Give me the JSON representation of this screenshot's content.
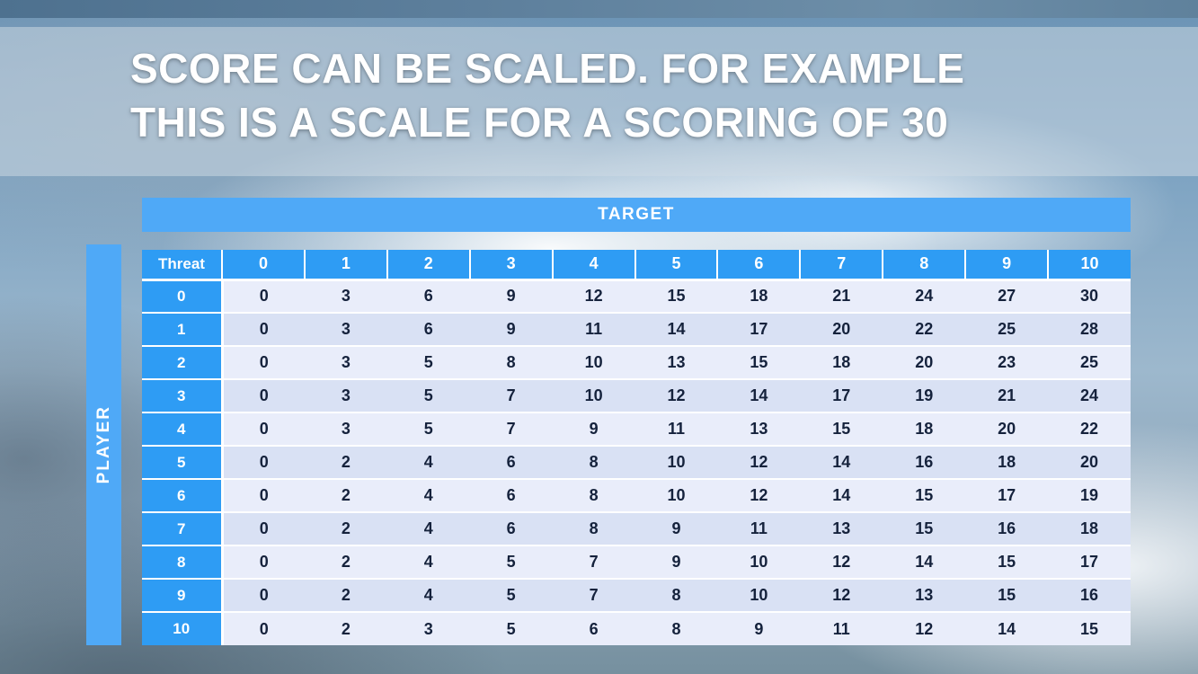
{
  "slide": {
    "title_line1": "SCORE CAN BE SCALED. FOR EXAMPLE",
    "title_line2": "THIS IS A SCALE FOR A SCORING OF 30"
  },
  "table": {
    "target_label": "TARGET",
    "player_label": "PLAYER",
    "corner_label": "Threat",
    "column_headers": [
      "0",
      "1",
      "2",
      "3",
      "4",
      "5",
      "6",
      "7",
      "8",
      "9",
      "10"
    ],
    "rows": [
      {
        "header": "0",
        "values": [
          0,
          3,
          6,
          9,
          12,
          15,
          18,
          21,
          24,
          27,
          30
        ]
      },
      {
        "header": "1",
        "values": [
          0,
          3,
          6,
          9,
          11,
          14,
          17,
          20,
          22,
          25,
          28
        ]
      },
      {
        "header": "2",
        "values": [
          0,
          3,
          5,
          8,
          10,
          13,
          15,
          18,
          20,
          23,
          25
        ]
      },
      {
        "header": "3",
        "values": [
          0,
          3,
          5,
          7,
          10,
          12,
          14,
          17,
          19,
          21,
          24
        ]
      },
      {
        "header": "4",
        "values": [
          0,
          3,
          5,
          7,
          9,
          11,
          13,
          15,
          18,
          20,
          22
        ]
      },
      {
        "header": "5",
        "values": [
          0,
          2,
          4,
          6,
          8,
          10,
          12,
          14,
          16,
          18,
          20
        ]
      },
      {
        "header": "6",
        "values": [
          0,
          2,
          4,
          6,
          8,
          10,
          12,
          14,
          15,
          17,
          19
        ]
      },
      {
        "header": "7",
        "values": [
          0,
          2,
          4,
          6,
          8,
          9,
          11,
          13,
          15,
          16,
          18
        ]
      },
      {
        "header": "8",
        "values": [
          0,
          2,
          4,
          5,
          7,
          9,
          10,
          12,
          14,
          15,
          17
        ]
      },
      {
        "header": "9",
        "values": [
          0,
          2,
          4,
          5,
          7,
          8,
          10,
          12,
          13,
          15,
          16
        ]
      },
      {
        "header": "10",
        "values": [
          0,
          2,
          3,
          5,
          6,
          8,
          9,
          11,
          12,
          14,
          15
        ]
      }
    ]
  },
  "colors": {
    "header_blue": "#2E9CF4",
    "bar_blue": "#4FA9F7",
    "band_light": "#E9EDFA",
    "band_dark": "#D9E1F4",
    "value_text": "#15223C",
    "title_text": "#FFFFFF"
  }
}
